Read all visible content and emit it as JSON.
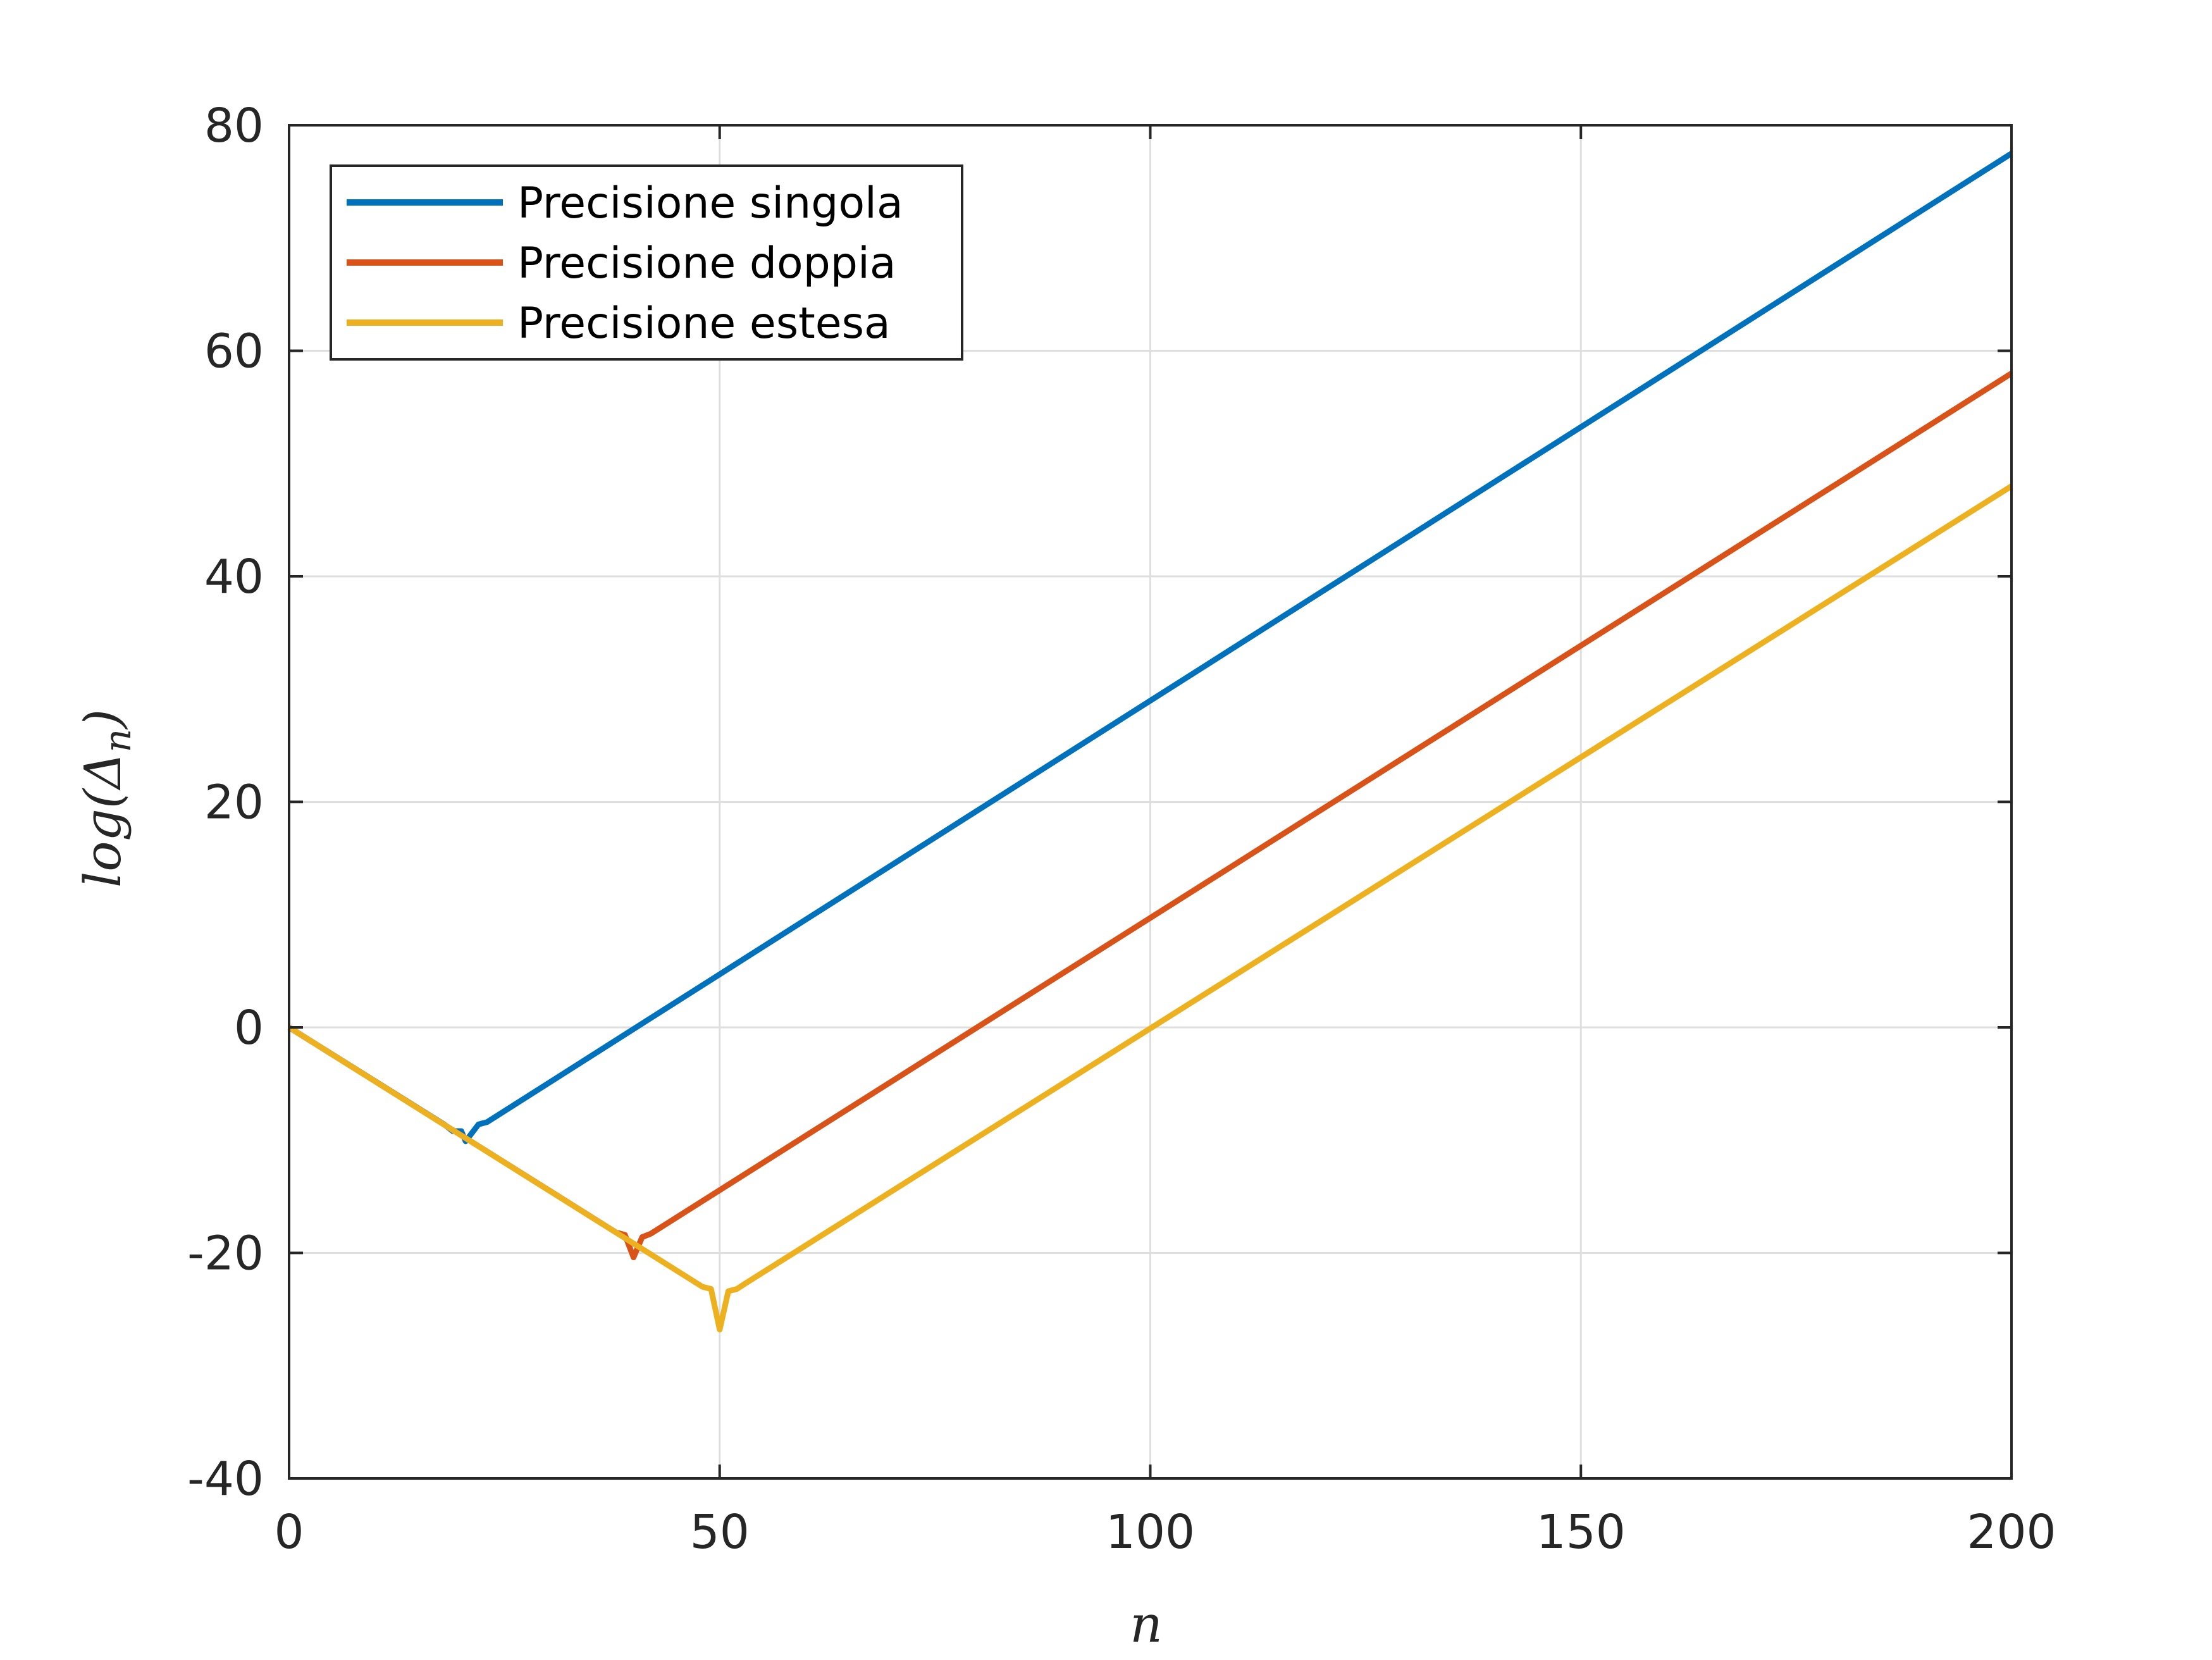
{
  "chart_data": {
    "type": "line",
    "xlabel": "n",
    "ylabel": "log(Δ",
    "ylabel_sub": "n",
    "ylabel_close": ")",
    "xlim": [
      0,
      200
    ],
    "ylim": [
      -40,
      80
    ],
    "xticks": [
      0,
      50,
      100,
      150,
      200
    ],
    "yticks": [
      -40,
      -20,
      0,
      20,
      40,
      60,
      80
    ],
    "grid": true,
    "legend_position": "top-left",
    "series": [
      {
        "name": "Precisione singola",
        "color": "#0072bd",
        "points": [
          [
            0,
            0
          ],
          [
            18,
            -8.6
          ],
          [
            19,
            -9.2
          ],
          [
            20,
            -9.2
          ],
          [
            20.5,
            -10.1
          ],
          [
            21,
            -9.6
          ],
          [
            22,
            -8.6
          ],
          [
            23,
            -8.4
          ],
          [
            200,
            77.5
          ]
        ]
      },
      {
        "name": "Precisione doppia",
        "color": "#d95319",
        "points": [
          [
            0,
            0
          ],
          [
            38,
            -18.2
          ],
          [
            39,
            -18.4
          ],
          [
            40,
            -20.4
          ],
          [
            41,
            -18.6
          ],
          [
            42,
            -18.3
          ],
          [
            200,
            58
          ]
        ]
      },
      {
        "name": "Precisione estesa",
        "color": "#edb120",
        "points": [
          [
            0,
            0
          ],
          [
            48,
            -23.0
          ],
          [
            49,
            -23.2
          ],
          [
            50,
            -26.8
          ],
          [
            51,
            -23.4
          ],
          [
            52,
            -23.2
          ],
          [
            53,
            -22.7
          ],
          [
            200,
            48
          ]
        ]
      }
    ]
  }
}
